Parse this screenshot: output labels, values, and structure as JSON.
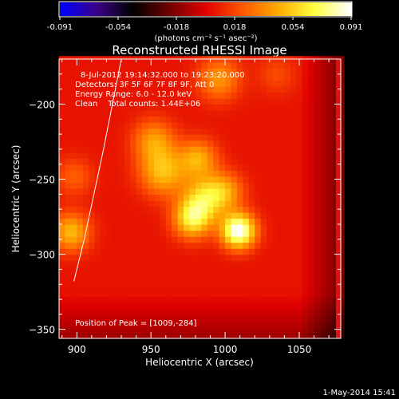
{
  "chart_data": {
    "type": "heatmap",
    "title": "Reconstructed RHESSI Image",
    "xlabel": "Heliocentric X (arcsec)",
    "ylabel": "Heliocentric Y (arcsec)",
    "xlim": [
      888,
      1078
    ],
    "ylim": [
      -356,
      -170
    ],
    "x_ticks": [
      900,
      950,
      1000,
      1050
    ],
    "y_ticks": [
      -200,
      -250,
      -300,
      -350
    ],
    "colorbar": {
      "ticks": [
        "-0.091",
        "-0.054",
        "-0.018",
        "0.018",
        "0.054",
        "0.091"
      ],
      "range": [
        -0.091,
        0.091
      ],
      "label": "(photons cm⁻² s⁻¹ asec⁻²)"
    },
    "info_lines": [
      "8-Jul-2012 19:14:32.000 to 19:23:20.000",
      "Detectors: 3F 5F 6F 7F 8F 9F, Att 0",
      "Energy Range: 6.0 - 12.0 keV",
      "Clean    Total counts: 1.44E+06"
    ],
    "peak_text": "Position of Peak = [1009,-284]",
    "peak": {
      "x": 1009,
      "y": -284
    },
    "sources": [
      {
        "x": 952,
        "y": -224,
        "amp": 0.035,
        "sigma": 10
      },
      {
        "x": 958,
        "y": -245,
        "amp": 0.045,
        "sigma": 11
      },
      {
        "x": 982,
        "y": -236,
        "amp": 0.04,
        "sigma": 9
      },
      {
        "x": 986,
        "y": -262,
        "amp": 0.045,
        "sigma": 10
      },
      {
        "x": 978,
        "y": -276,
        "amp": 0.06,
        "sigma": 9
      },
      {
        "x": 1009,
        "y": -284,
        "amp": 0.09,
        "sigma": 8
      },
      {
        "x": 1000,
        "y": -258,
        "amp": 0.035,
        "sigma": 9
      },
      {
        "x": 996,
        "y": -183,
        "amp": 0.035,
        "sigma": 10
      },
      {
        "x": 1035,
        "y": -180,
        "amp": 0.015,
        "sigma": 9
      },
      {
        "x": 896,
        "y": -285,
        "amp": 0.045,
        "sigma": 9
      },
      {
        "x": 898,
        "y": -248,
        "amp": 0.02,
        "sigma": 9
      }
    ],
    "limb": [
      [
        930,
        -170
      ],
      [
        918,
        -230
      ],
      [
        905,
        -290
      ],
      [
        898,
        -318
      ]
    ],
    "footer": "1-May-2014 15:41",
    "colormap": [
      "#0000ff",
      "#3a0088",
      "#000000",
      "#700000",
      "#e00000",
      "#ff5500",
      "#ffaa00",
      "#ffff40",
      "#ffffff"
    ]
  }
}
